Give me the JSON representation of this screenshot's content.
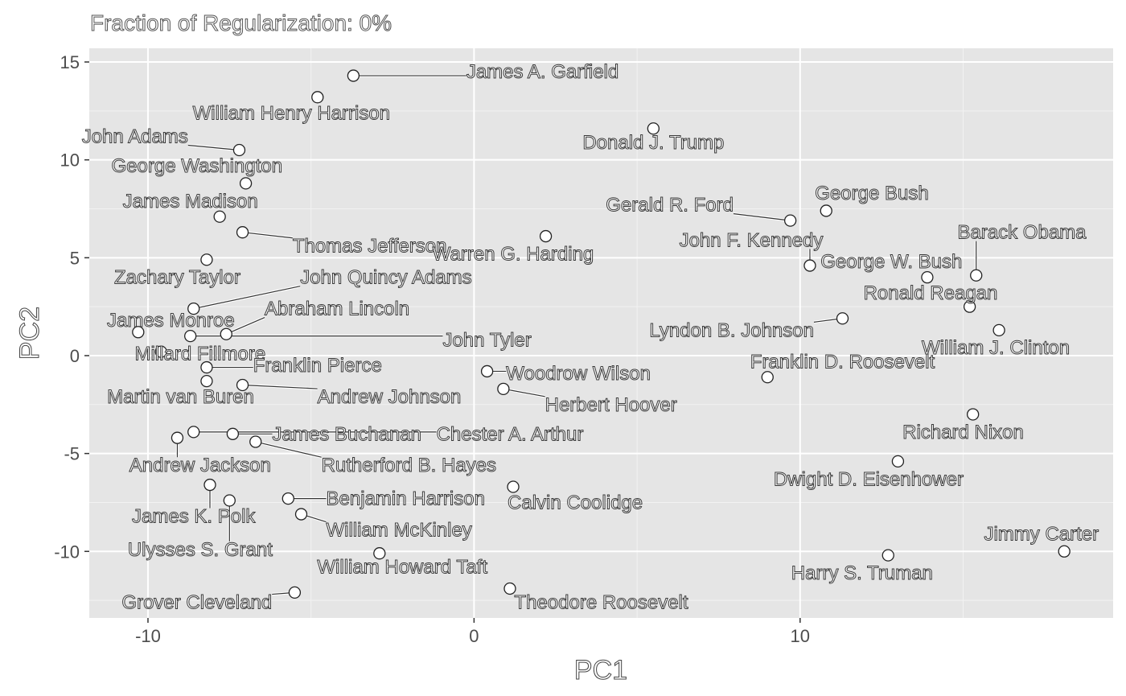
{
  "chart_data": {
    "type": "scatter",
    "title": "Fraction of Regularization: 0%",
    "xlabel": "PC1",
    "ylabel": "PC2",
    "xlim": [
      -11.8,
      19.6
    ],
    "ylim": [
      -13.4,
      15.7
    ],
    "x_ticks": [
      -10,
      0,
      10
    ],
    "y_ticks": [
      -10,
      -5,
      0,
      5,
      10,
      15
    ],
    "grid": true,
    "background": "#e5e5e5",
    "points": [
      {
        "name": "James A. Garfield",
        "x": -3.7,
        "y": 14.3,
        "lx": 2.1,
        "ly": 14.5
      },
      {
        "name": "William Henry Harrison",
        "x": -4.8,
        "y": 13.2,
        "lx": -5.6,
        "ly": 12.4
      },
      {
        "name": "John Adams",
        "x": -7.2,
        "y": 10.5,
        "lx": -10.4,
        "ly": 11.2
      },
      {
        "name": "Donald J. Trump",
        "x": 5.5,
        "y": 11.6,
        "lx": 5.5,
        "ly": 10.9
      },
      {
        "name": "George Washington",
        "x": -7.0,
        "y": 8.8,
        "lx": -8.5,
        "ly": 9.7
      },
      {
        "name": "James Madison",
        "x": -7.8,
        "y": 7.1,
        "lx": -8.7,
        "ly": 7.9
      },
      {
        "name": "George Bush",
        "x": 10.8,
        "y": 7.4,
        "lx": 12.2,
        "ly": 8.3
      },
      {
        "name": "Gerald R. Ford",
        "x": 9.7,
        "y": 6.9,
        "lx": 6.0,
        "ly": 7.7
      },
      {
        "name": "Thomas Jefferson",
        "x": -7.1,
        "y": 6.3,
        "lx": -3.2,
        "ly": 5.6
      },
      {
        "name": "Warren G. Harding",
        "x": 2.2,
        "y": 6.1,
        "lx": 1.2,
        "ly": 5.2
      },
      {
        "name": "Barack Obama",
        "x": 15.4,
        "y": 4.1,
        "lx": 16.8,
        "ly": 6.3
      },
      {
        "name": "John F. Kennedy",
        "x": 10.3,
        "y": 4.6,
        "lx": 8.5,
        "ly": 5.9
      },
      {
        "name": "George W. Bush",
        "x": 13.9,
        "y": 4.0,
        "lx": 12.8,
        "ly": 4.8
      },
      {
        "name": "Zachary Taylor",
        "x": -8.2,
        "y": 4.9,
        "lx": -9.1,
        "ly": 4.0
      },
      {
        "name": "John Quincy Adams",
        "x": -8.6,
        "y": 2.4,
        "lx": -2.7,
        "ly": 4.0
      },
      {
        "name": "Ronald Reagan",
        "x": 15.2,
        "y": 2.5,
        "lx": 14.0,
        "ly": 3.2
      },
      {
        "name": "Abraham Lincoln",
        "x": -7.6,
        "y": 1.1,
        "lx": -4.2,
        "ly": 2.4
      },
      {
        "name": "James Monroe",
        "x": -10.3,
        "y": 1.2,
        "lx": -9.3,
        "ly": 1.8
      },
      {
        "name": "Lyndon B. Johnson",
        "x": 11.3,
        "y": 1.9,
        "lx": 7.9,
        "ly": 1.3
      },
      {
        "name": "John Tyler",
        "x": -8.7,
        "y": 1.0,
        "lx": 0.4,
        "ly": 0.8
      },
      {
        "name": "William J. Clinton",
        "x": 16.1,
        "y": 1.3,
        "lx": 16.0,
        "ly": 0.4
      },
      {
        "name": "Millard Fillmore",
        "x": -9.6,
        "y": 0.2,
        "lx": -8.4,
        "ly": 0.1
      },
      {
        "name": "Franklin D. Roosevelt",
        "x": 9.0,
        "y": -1.1,
        "lx": 11.3,
        "ly": -0.3
      },
      {
        "name": "Franklin Pierce",
        "x": -8.2,
        "y": -0.6,
        "lx": -4.8,
        "ly": -0.5
      },
      {
        "name": "Woodrow Wilson",
        "x": 0.4,
        "y": -0.8,
        "lx": 3.2,
        "ly": -0.9
      },
      {
        "name": "Martin van Buren",
        "x": -8.2,
        "y": -1.3,
        "lx": -9.0,
        "ly": -2.1
      },
      {
        "name": "Andrew Johnson",
        "x": -7.1,
        "y": -1.5,
        "lx": -2.6,
        "ly": -2.1
      },
      {
        "name": "Herbert Hoover",
        "x": 0.9,
        "y": -1.7,
        "lx": 4.2,
        "ly": -2.5
      },
      {
        "name": "Richard Nixon",
        "x": 15.3,
        "y": -3.0,
        "lx": 15.0,
        "ly": -3.9
      },
      {
        "name": "James Buchanan",
        "x": -7.4,
        "y": -4.0,
        "lx": -3.9,
        "ly": -4.0
      },
      {
        "name": "Chester A. Arthur",
        "x": -8.6,
        "y": -3.9,
        "lx": 1.1,
        "ly": -4.0
      },
      {
        "name": "Andrew Jackson",
        "x": -9.1,
        "y": -4.2,
        "lx": -8.4,
        "ly": -5.6
      },
      {
        "name": "Rutherford B. Hayes",
        "x": -6.7,
        "y": -4.4,
        "lx": -2.0,
        "ly": -5.6
      },
      {
        "name": "Dwight D. Eisenhower",
        "x": 13.0,
        "y": -5.4,
        "lx": 12.1,
        "ly": -6.3
      },
      {
        "name": "James K. Polk",
        "x": -8.1,
        "y": -6.6,
        "lx": -8.6,
        "ly": -8.2
      },
      {
        "name": "Benjamin Harrison",
        "x": -5.7,
        "y": -7.3,
        "lx": -2.1,
        "ly": -7.3
      },
      {
        "name": "Calvin Coolidge",
        "x": 1.2,
        "y": -6.7,
        "lx": 3.1,
        "ly": -7.5
      },
      {
        "name": "Ulysses S. Grant",
        "x": -7.5,
        "y": -7.4,
        "lx": -8.4,
        "ly": -9.9
      },
      {
        "name": "William McKinley",
        "x": -5.3,
        "y": -8.1,
        "lx": -2.3,
        "ly": -8.9
      },
      {
        "name": "Jimmy Carter",
        "x": 18.1,
        "y": -10.0,
        "lx": 17.4,
        "ly": -9.1
      },
      {
        "name": "William Howard Taft",
        "x": -2.9,
        "y": -10.1,
        "lx": -2.2,
        "ly": -10.8
      },
      {
        "name": "Harry S. Truman",
        "x": 12.7,
        "y": -10.2,
        "lx": 11.9,
        "ly": -11.1
      },
      {
        "name": "Theodore Roosevelt",
        "x": 1.1,
        "y": -11.9,
        "lx": 3.9,
        "ly": -12.6
      },
      {
        "name": "Grover Cleveland",
        "x": -5.5,
        "y": -12.1,
        "lx": -8.5,
        "ly": -12.6
      }
    ]
  }
}
